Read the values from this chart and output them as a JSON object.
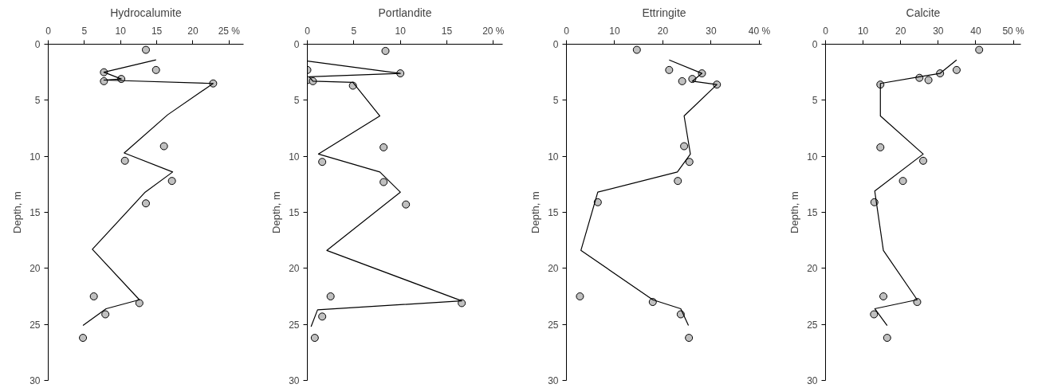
{
  "chart_data": [
    {
      "type": "scatter",
      "title": "Hydrocalumite",
      "ylabel": "Depth, m",
      "xlim": [
        0,
        27
      ],
      "xticks": [
        0,
        5,
        10,
        15,
        20,
        {
          "value": 25,
          "label": "25 %"
        }
      ],
      "ylim": [
        30,
        0
      ],
      "yticks": [
        0,
        5,
        10,
        15,
        20,
        25,
        30
      ],
      "grid": false,
      "series": [
        {
          "marker": "circle",
          "color": "#c0c0c0",
          "x": [
            13.5,
            14.9,
            7.7,
            10.1,
            7.7,
            22.8,
            16.0,
            10.6,
            17.1,
            13.5,
            6.3,
            12.6,
            7.9,
            4.8
          ],
          "values": [
            0.5,
            2.3,
            2.5,
            3.1,
            3.3,
            3.5,
            9.1,
            10.4,
            12.2,
            14.2,
            22.5,
            23.1,
            24.1,
            26.2
          ]
        },
        {
          "type": "line",
          "marker": "none",
          "color": "#000000",
          "x": [
            14.9,
            7.7,
            10.1,
            7.7,
            22.8,
            16.5,
            10.5,
            17.2,
            13.4,
            6.1,
            12.6,
            8.0,
            4.8
          ],
          "values": [
            1.4,
            2.5,
            3.1,
            3.2,
            3.5,
            6.3,
            9.7,
            11.4,
            13.2,
            18.3,
            22.8,
            23.6,
            25.1
          ]
        }
      ]
    },
    {
      "type": "scatter",
      "title": "Portlandite",
      "ylabel": "Depth, m",
      "xlim": [
        0,
        21
      ],
      "xticks": [
        0,
        5,
        10,
        15,
        {
          "value": 20,
          "label": "20 %"
        }
      ],
      "ylim": [
        30,
        0
      ],
      "yticks": [
        0,
        5,
        10,
        15,
        20,
        25,
        30
      ],
      "grid": false,
      "series": [
        {
          "marker": "circle",
          "color": "#c0c0c0",
          "x": [
            8.4,
            0,
            10.0,
            0,
            0.6,
            4.9,
            8.2,
            1.6,
            8.2,
            10.6,
            2.5,
            16.6,
            1.6,
            0.8
          ],
          "values": [
            0.6,
            2.3,
            2.6,
            3.2,
            3.3,
            3.7,
            9.2,
            10.5,
            12.3,
            14.3,
            22.5,
            23.1,
            24.3,
            26.2
          ]
        },
        {
          "type": "line",
          "marker": "none",
          "color": "#000000",
          "x": [
            0,
            10.0,
            0.2,
            0.6,
            4.9,
            7.8,
            1.2,
            7.8,
            10.0,
            2.1,
            16.6,
            1.1,
            0.4
          ],
          "values": [
            1.5,
            2.6,
            2.9,
            3.3,
            3.4,
            6.4,
            9.8,
            11.4,
            13.2,
            18.4,
            22.9,
            23.7,
            25.2
          ]
        }
      ]
    },
    {
      "type": "scatter",
      "title": "Ettringite",
      "ylabel": "Depth, m",
      "xlim": [
        0,
        40.5
      ],
      "xticks": [
        0,
        10,
        20,
        30,
        {
          "value": 40,
          "label": "40 %"
        }
      ],
      "ylim": [
        30,
        0
      ],
      "yticks": [
        0,
        5,
        10,
        15,
        20,
        25,
        30
      ],
      "grid": false,
      "series": [
        {
          "marker": "circle",
          "color": "#c0c0c0",
          "x": [
            14.6,
            21.3,
            28.1,
            26.1,
            24.0,
            31.2,
            24.4,
            25.5,
            23.1,
            6.5,
            2.8,
            17.9,
            23.7,
            25.4
          ],
          "values": [
            0.5,
            2.3,
            2.6,
            3.1,
            3.3,
            3.6,
            9.1,
            10.5,
            12.2,
            14.1,
            22.5,
            23.0,
            24.1,
            26.2
          ]
        },
        {
          "type": "line",
          "marker": "none",
          "color": "#000000",
          "x": [
            21.3,
            28.1,
            26.1,
            31.2,
            24.4,
            25.7,
            23.0,
            6.5,
            3.0,
            17.9,
            23.7,
            25.3
          ],
          "values": [
            1.4,
            2.6,
            3.3,
            3.6,
            6.4,
            9.8,
            11.4,
            13.2,
            18.4,
            22.8,
            23.6,
            25.1
          ]
        }
      ]
    },
    {
      "type": "scatter",
      "title": "Calcite",
      "ylabel": "Depth, m",
      "xlim": [
        0,
        52
      ],
      "xticks": [
        0,
        10,
        20,
        30,
        40,
        {
          "value": 50,
          "label": "50 %"
        }
      ],
      "ylim": [
        30,
        0
      ],
      "yticks": [
        0,
        5,
        10,
        15,
        20,
        25,
        30
      ],
      "grid": false,
      "series": [
        {
          "marker": "circle",
          "color": "#c0c0c0",
          "x": [
            40.9,
            34.9,
            30.5,
            25.0,
            27.4,
            14.6,
            14.6,
            26.0,
            20.6,
            13.0,
            15.4,
            24.4,
            12.9,
            16.4
          ],
          "values": [
            0.5,
            2.3,
            2.6,
            3.0,
            3.2,
            3.6,
            9.2,
            10.4,
            12.2,
            14.1,
            22.5,
            23.0,
            24.1,
            26.2
          ]
        },
        {
          "type": "line",
          "marker": "none",
          "color": "#000000",
          "x": [
            34.9,
            30.5,
            25.0,
            14.6,
            14.6,
            26.0,
            13.1,
            13.4,
            15.4,
            24.4,
            13.1,
            16.4
          ],
          "values": [
            1.4,
            2.6,
            2.9,
            3.5,
            6.4,
            9.8,
            13.1,
            13.8,
            18.4,
            22.8,
            23.6,
            25.1
          ]
        }
      ]
    }
  ]
}
